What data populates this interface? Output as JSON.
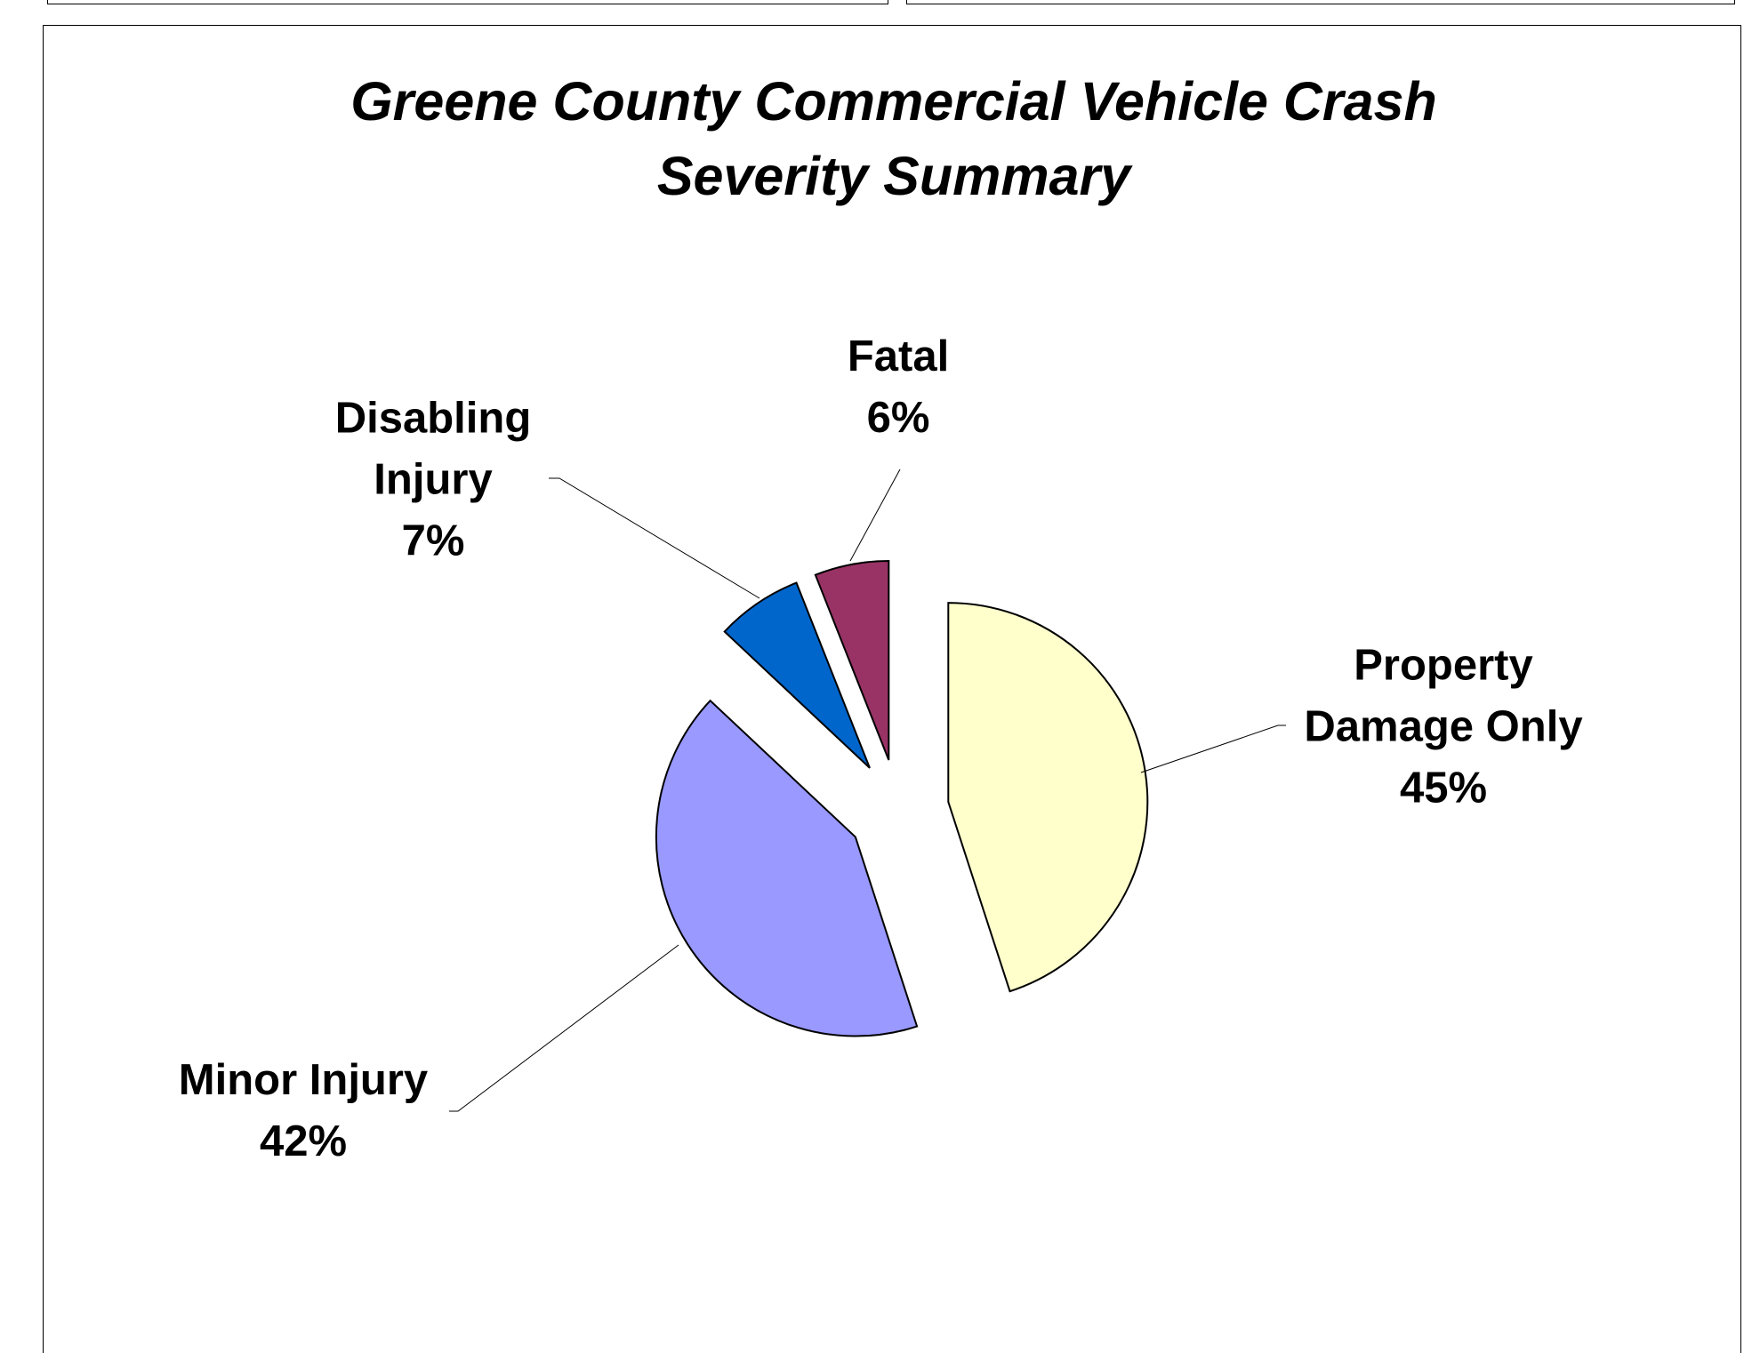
{
  "chart_data": {
    "type": "pie",
    "title": "Greene County Commercial Vehicle Crash Severity Summary",
    "categories": [
      "Property Damage Only",
      "Minor Injury",
      "Disabling Injury",
      "Fatal"
    ],
    "values": [
      45,
      42,
      7,
      6
    ],
    "value_labels": [
      "45%",
      "42%",
      "7%",
      "6%"
    ],
    "colors": [
      "#FFFFCC",
      "#9999FF",
      "#0066CC",
      "#993366"
    ]
  }
}
